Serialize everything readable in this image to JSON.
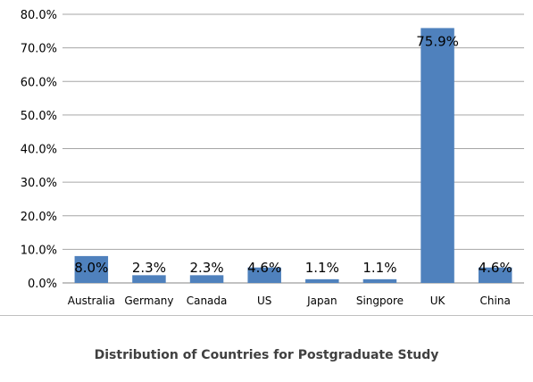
{
  "chart_data": {
    "type": "bar",
    "title": "Distribution of Countries for Postgraduate Study",
    "xlabel": "",
    "ylabel": "",
    "categories": [
      "Australia",
      "Germany",
      "Canada",
      "US",
      "Japan",
      "Singpore",
      "UK",
      "China"
    ],
    "values": [
      8.0,
      2.3,
      2.3,
      4.6,
      1.1,
      1.1,
      75.9,
      4.6
    ],
    "data_labels": [
      "8.0%",
      "2.3%",
      "2.3%",
      "4.6%",
      "1.1%",
      "1.1%",
      "75.9%",
      "4.6%"
    ],
    "ylim": [
      0,
      80
    ],
    "yticks": [
      0,
      10,
      20,
      30,
      40,
      50,
      60,
      70,
      80
    ],
    "ytick_labels": [
      "0.0%",
      "10.0%",
      "20.0%",
      "30.0%",
      "40.0%",
      "50.0%",
      "60.0%",
      "70.0%",
      "80.0%"
    ],
    "grid": true,
    "legend": "none",
    "colors": {
      "bar": "#4f81bd",
      "grid": "#a6a6a6",
      "axis": "#868686"
    }
  }
}
